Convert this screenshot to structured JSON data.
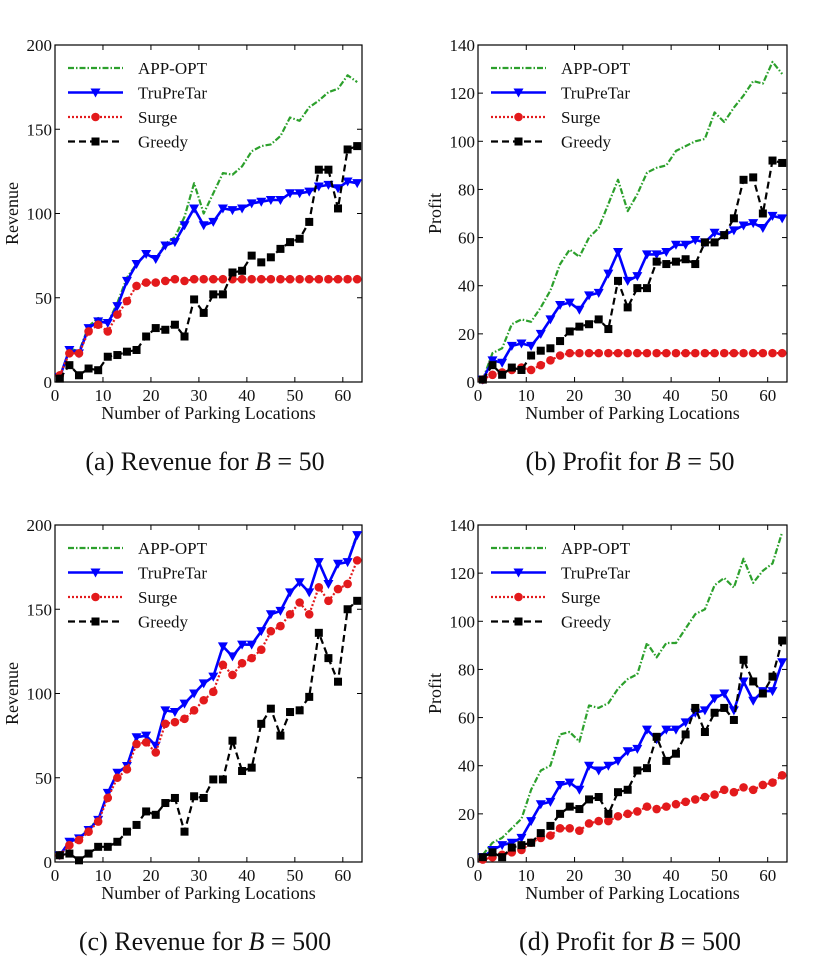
{
  "chart_data": [
    {
      "type": "line",
      "id": "a",
      "caption": {
        "prefix": "(a) Revenue for ",
        "var": "B",
        "suffix": " = 50"
      },
      "xlabel": "Number of Parking Locations",
      "ylabel": "Revenue",
      "xlim": [
        0,
        64
      ],
      "ylim": [
        0,
        200
      ],
      "xticks": [
        0,
        10,
        20,
        30,
        40,
        50,
        60
      ],
      "yticks": [
        0,
        50,
        100,
        150,
        200
      ],
      "legend": "top-left",
      "x": [
        1,
        3,
        5,
        7,
        9,
        11,
        13,
        15,
        17,
        19,
        21,
        23,
        25,
        27,
        29,
        31,
        33,
        35,
        37,
        39,
        41,
        43,
        45,
        47,
        49,
        51,
        53,
        55,
        57,
        59,
        61,
        63
      ],
      "series": [
        {
          "name": "APP-OPT",
          "color": "#2ca02c",
          "style": "dashdot",
          "marker": "none",
          "values": [
            2,
            20,
            18,
            33,
            38,
            35,
            47,
            62,
            70,
            76,
            73,
            82,
            86,
            98,
            118,
            100,
            112,
            124,
            123,
            128,
            137,
            140,
            141,
            146,
            157,
            155,
            163,
            167,
            172,
            174,
            182,
            178
          ]
        },
        {
          "name": "TruPreTar",
          "color": "#0000ff",
          "style": "solid",
          "marker": "triangle-down",
          "values": [
            3,
            19,
            17,
            32,
            36,
            35,
            45,
            60,
            70,
            76,
            73,
            81,
            83,
            93,
            103,
            93,
            95,
            103,
            102,
            103,
            106,
            107,
            108,
            108,
            112,
            112,
            113,
            116,
            117,
            115,
            119,
            118
          ]
        },
        {
          "name": "Surge",
          "color": "#e31a1c",
          "style": "dotted",
          "marker": "circle",
          "values": [
            4,
            17,
            17,
            30,
            34,
            30,
            40,
            48,
            57,
            59,
            59,
            60,
            61,
            60,
            61,
            61,
            61,
            61,
            61,
            61,
            61,
            61,
            61,
            61,
            61,
            61,
            61,
            61,
            61,
            61,
            61,
            61
          ]
        },
        {
          "name": "Greedy",
          "color": "#000000",
          "style": "dashed",
          "marker": "square",
          "values": [
            2,
            10,
            4,
            8,
            7,
            15,
            16,
            18,
            19,
            27,
            32,
            31,
            34,
            27,
            49,
            41,
            52,
            52,
            65,
            66,
            75,
            71,
            74,
            79,
            83,
            85,
            95,
            126,
            126,
            103,
            138,
            140
          ]
        }
      ]
    },
    {
      "type": "line",
      "id": "b",
      "caption": {
        "prefix": "(b) Profit for ",
        "var": "B",
        "suffix": " = 50"
      },
      "xlabel": "Number of Parking Locations",
      "ylabel": "Profit",
      "xlim": [
        0,
        64
      ],
      "ylim": [
        0,
        140
      ],
      "xticks": [
        0,
        10,
        20,
        30,
        40,
        50,
        60
      ],
      "yticks": [
        0,
        20,
        40,
        60,
        80,
        100,
        120,
        140
      ],
      "legend": "top-left",
      "x": [
        1,
        3,
        5,
        7,
        9,
        11,
        13,
        15,
        17,
        19,
        21,
        23,
        25,
        27,
        29,
        31,
        33,
        35,
        37,
        39,
        41,
        43,
        45,
        47,
        49,
        51,
        53,
        55,
        57,
        59,
        61,
        63
      ],
      "series": [
        {
          "name": "APP-OPT",
          "color": "#2ca02c",
          "style": "dashdot",
          "marker": "none",
          "values": [
            1,
            12,
            14,
            24,
            26,
            25,
            31,
            38,
            49,
            55,
            52,
            60,
            64,
            74,
            84,
            71,
            78,
            87,
            89,
            90,
            96,
            98,
            100,
            101,
            112,
            108,
            114,
            119,
            125,
            124,
            133,
            128
          ]
        },
        {
          "name": "TruPreTar",
          "color": "#0000ff",
          "style": "solid",
          "marker": "triangle-down",
          "values": [
            1,
            9,
            8,
            15,
            16,
            15,
            20,
            26,
            32,
            33,
            30,
            36,
            37,
            45,
            54,
            42,
            44,
            53,
            53,
            54,
            57,
            57,
            59,
            58,
            62,
            61,
            63,
            65,
            66,
            64,
            69,
            68
          ]
        },
        {
          "name": "Surge",
          "color": "#e31a1c",
          "style": "dotted",
          "marker": "circle",
          "values": [
            1,
            3,
            4,
            5,
            6,
            5,
            7,
            9,
            11,
            12,
            12,
            12,
            12,
            12,
            12,
            12,
            12,
            12,
            12,
            12,
            12,
            12,
            12,
            12,
            12,
            12,
            12,
            12,
            12,
            12,
            12,
            12
          ]
        },
        {
          "name": "Greedy",
          "color": "#000000",
          "style": "dashed",
          "marker": "square",
          "values": [
            1,
            7,
            3,
            6,
            5,
            11,
            13,
            14,
            17,
            21,
            23,
            24,
            26,
            22,
            42,
            31,
            39,
            39,
            50,
            49,
            50,
            51,
            49,
            58,
            58,
            61,
            68,
            84,
            85,
            70,
            92,
            91
          ]
        }
      ]
    },
    {
      "type": "line",
      "id": "c",
      "caption": {
        "prefix": "(c) Revenue for ",
        "var": "B",
        "suffix": " = 500"
      },
      "xlabel": "Number of Parking Locations",
      "ylabel": "Revenue",
      "xlim": [
        0,
        64
      ],
      "ylim": [
        0,
        200
      ],
      "xticks": [
        0,
        10,
        20,
        30,
        40,
        50,
        60
      ],
      "yticks": [
        0,
        50,
        100,
        150,
        200
      ],
      "legend": "top-left",
      "x": [
        1,
        3,
        5,
        7,
        9,
        11,
        13,
        15,
        17,
        19,
        21,
        23,
        25,
        27,
        29,
        31,
        33,
        35,
        37,
        39,
        41,
        43,
        45,
        47,
        49,
        51,
        53,
        55,
        57,
        59,
        61,
        63
      ],
      "series": [
        {
          "name": "APP-OPT",
          "color": "#2ca02c",
          "style": "dashdot",
          "marker": "none",
          "values": [
            4,
            12,
            14,
            20,
            25,
            41,
            53,
            57,
            74,
            75,
            69,
            90,
            89,
            94,
            100,
            106,
            110,
            128,
            122,
            129,
            129,
            137,
            147,
            149,
            160,
            166,
            160,
            178,
            165,
            177,
            178,
            195
          ]
        },
        {
          "name": "TruPreTar",
          "color": "#0000ff",
          "style": "solid",
          "marker": "triangle-down",
          "values": [
            4,
            12,
            14,
            19,
            25,
            41,
            53,
            57,
            74,
            75,
            69,
            90,
            89,
            94,
            100,
            106,
            110,
            128,
            122,
            129,
            129,
            137,
            147,
            149,
            160,
            166,
            160,
            178,
            165,
            177,
            178,
            194
          ]
        },
        {
          "name": "Surge",
          "color": "#e31a1c",
          "style": "dotted",
          "marker": "circle",
          "values": [
            4,
            10,
            13,
            18,
            24,
            38,
            50,
            55,
            70,
            71,
            65,
            82,
            83,
            85,
            90,
            96,
            101,
            117,
            111,
            118,
            121,
            126,
            137,
            140,
            147,
            154,
            147,
            163,
            155,
            162,
            165,
            179
          ]
        },
        {
          "name": "Greedy",
          "color": "#000000",
          "style": "dashed",
          "marker": "square",
          "values": [
            4,
            5,
            1,
            5,
            9,
            9,
            12,
            18,
            22,
            30,
            28,
            35,
            38,
            18,
            39,
            38,
            49,
            49,
            72,
            54,
            56,
            82,
            91,
            75,
            89,
            90,
            98,
            136,
            121,
            107,
            150,
            155
          ]
        }
      ]
    },
    {
      "type": "line",
      "id": "d",
      "caption": {
        "prefix": "(d) Profit for ",
        "var": "B",
        "suffix": " = 500"
      },
      "xlabel": "Number of Parking Locations",
      "ylabel": "Profit",
      "xlim": [
        0,
        64
      ],
      "ylim": [
        0,
        140
      ],
      "xticks": [
        0,
        10,
        20,
        30,
        40,
        50,
        60
      ],
      "yticks": [
        0,
        20,
        40,
        60,
        80,
        100,
        120,
        140
      ],
      "legend": "top-left",
      "x": [
        1,
        3,
        5,
        7,
        9,
        11,
        13,
        15,
        17,
        19,
        21,
        23,
        25,
        27,
        29,
        31,
        33,
        35,
        37,
        39,
        41,
        43,
        45,
        47,
        49,
        51,
        53,
        55,
        57,
        59,
        61,
        63
      ],
      "series": [
        {
          "name": "APP-OPT",
          "color": "#2ca02c",
          "style": "dashdot",
          "marker": "none",
          "values": [
            3,
            8,
            10,
            14,
            18,
            30,
            38,
            40,
            53,
            54,
            50,
            65,
            64,
            66,
            72,
            76,
            78,
            91,
            85,
            91,
            91,
            97,
            103,
            105,
            115,
            118,
            114,
            126,
            116,
            121,
            124,
            137
          ]
        },
        {
          "name": "TruPreTar",
          "color": "#0000ff",
          "style": "solid",
          "marker": "triangle-down",
          "values": [
            2,
            5,
            7,
            8,
            10,
            17,
            24,
            25,
            32,
            33,
            30,
            40,
            38,
            40,
            42,
            46,
            47,
            55,
            51,
            55,
            55,
            58,
            62,
            63,
            68,
            70,
            63,
            75,
            67,
            71,
            71,
            83
          ]
        },
        {
          "name": "Surge",
          "color": "#e31a1c",
          "style": "dotted",
          "marker": "circle",
          "values": [
            1,
            2,
            3,
            4,
            5,
            8,
            10,
            11,
            14,
            14,
            13,
            16,
            17,
            17,
            19,
            20,
            21,
            23,
            22,
            23,
            24,
            25,
            26,
            27,
            28,
            30,
            29,
            31,
            30,
            32,
            33,
            36
          ]
        },
        {
          "name": "Greedy",
          "color": "#000000",
          "style": "dashed",
          "marker": "square",
          "values": [
            2,
            4,
            2,
            6,
            7,
            8,
            12,
            15,
            20,
            23,
            22,
            26,
            27,
            20,
            29,
            30,
            38,
            39,
            52,
            42,
            45,
            53,
            64,
            54,
            62,
            64,
            59,
            84,
            75,
            70,
            77,
            92
          ]
        }
      ]
    }
  ]
}
